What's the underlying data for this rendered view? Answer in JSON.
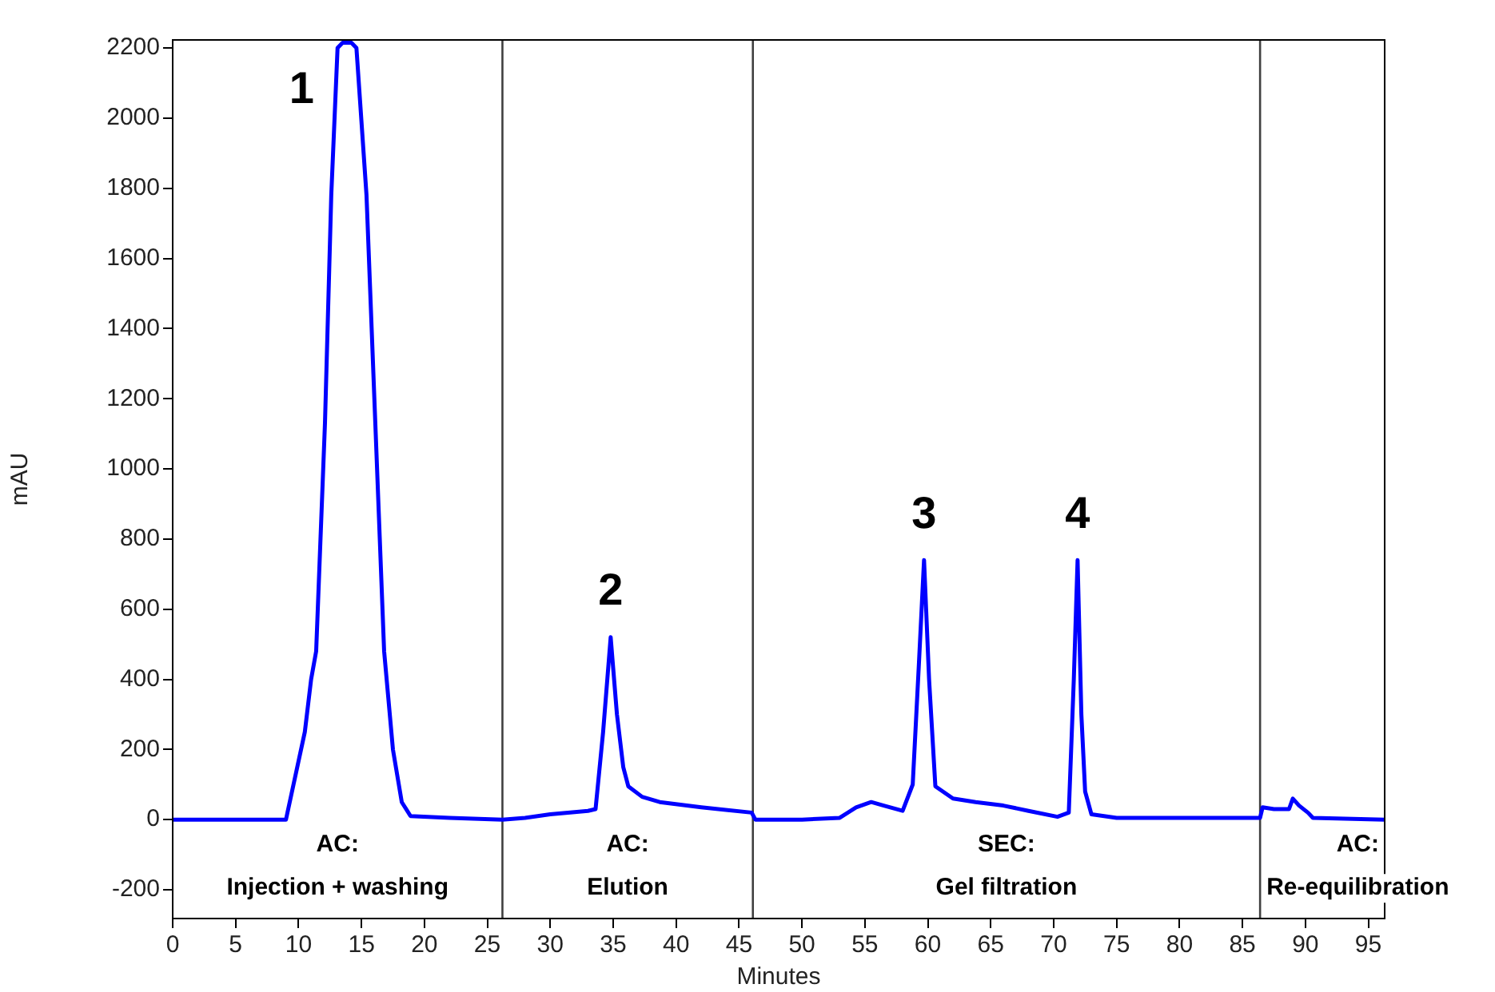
{
  "chart_data": {
    "type": "line",
    "xlabel": "Minutes",
    "ylabel": "mAU",
    "xlim": [
      0,
      96.3
    ],
    "ylim": [
      -282,
      2223
    ],
    "xticks": [
      0,
      5,
      10,
      15,
      20,
      25,
      30,
      35,
      40,
      45,
      50,
      55,
      60,
      65,
      70,
      75,
      80,
      85,
      90,
      95
    ],
    "yticks": [
      -200,
      0,
      200,
      400,
      600,
      800,
      1000,
      1200,
      1400,
      1600,
      1800,
      2000,
      2200
    ],
    "grid": false,
    "legend": false,
    "marker": "none",
    "line_style": "solid",
    "series": [
      {
        "color": "#0000ff",
        "x": [
          0,
          9.0,
          9.6,
          10.5,
          11.0,
          11.4,
          12.1,
          12.6,
          13.1,
          13.5,
          14.2,
          14.6,
          15.4,
          16.1,
          16.8,
          17.5,
          18.2,
          18.9,
          22,
          26.2,
          28,
          30,
          33,
          33.6,
          34.2,
          34.8,
          35.3,
          35.8,
          36.2,
          37.3,
          38.7,
          42,
          46.0,
          46.3,
          50,
          53,
          54.3,
          55.5,
          56.5,
          58.0,
          58.8,
          59.3,
          59.7,
          60.1,
          60.6,
          62,
          63.8,
          66,
          68,
          70.3,
          71.2,
          71.6,
          71.9,
          72.2,
          72.5,
          73.0,
          75,
          86.4,
          86.6,
          87.5,
          88.7,
          89.0,
          89.5,
          90.2,
          90.6,
          96.3
        ],
        "values": [
          0,
          0,
          100,
          250,
          400,
          480,
          1130,
          1780,
          2200,
          2215,
          2215,
          2200,
          1780,
          1130,
          480,
          200,
          50,
          10,
          5,
          0,
          5,
          15,
          25,
          30,
          250,
          520,
          300,
          150,
          95,
          65,
          50,
          35,
          20,
          0,
          0,
          5,
          35,
          50,
          40,
          25,
          100,
          450,
          740,
          400,
          95,
          60,
          50,
          40,
          25,
          8,
          20,
          400,
          740,
          300,
          80,
          15,
          5,
          5,
          35,
          30,
          30,
          60,
          40,
          20,
          5,
          0
        ]
      }
    ],
    "ref_lines": [
      {
        "axis": "x",
        "value": 26.2,
        "color": "#404040"
      },
      {
        "axis": "x",
        "value": 46.1,
        "color": "#404040"
      },
      {
        "axis": "x",
        "value": 86.4,
        "color": "#404040"
      }
    ],
    "annotations": [
      "AC:\nInjection + washing",
      "AC:\nElution",
      "SEC:\nGel filtration",
      "AC:\nRe-equilibration",
      {
        "text": "1",
        "x": 13.8,
        "y": 2215
      },
      {
        "text": "2",
        "x": 34.8,
        "y": 520
      },
      {
        "text": "3",
        "x": 59.7,
        "y": 740
      },
      {
        "text": "4",
        "x": 71.9,
        "y": 740
      }
    ]
  }
}
